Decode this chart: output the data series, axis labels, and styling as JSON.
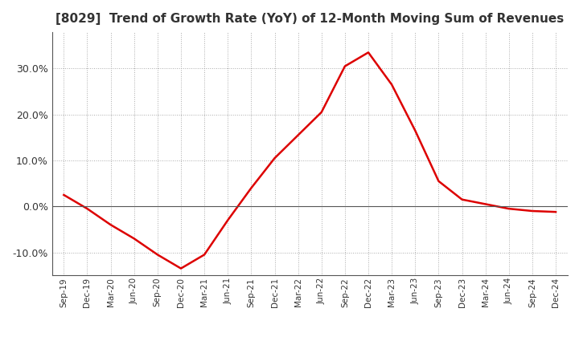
{
  "title": "[8029]  Trend of Growth Rate (YoY) of 12-Month Moving Sum of Revenues",
  "title_fontsize": 11,
  "line_color": "#dd0000",
  "line_width": 1.8,
  "background_color": "#ffffff",
  "plot_bg_color": "#ffffff",
  "grid_color": "#aaaaaa",
  "ylim": [
    -0.15,
    0.38
  ],
  "yticks": [
    -0.1,
    0.0,
    0.1,
    0.2,
    0.3
  ],
  "x_labels": [
    "Sep-19",
    "Dec-19",
    "Mar-20",
    "Jun-20",
    "Sep-20",
    "Dec-20",
    "Mar-21",
    "Jun-21",
    "Sep-21",
    "Dec-21",
    "Mar-22",
    "Jun-22",
    "Sep-22",
    "Dec-22",
    "Mar-23",
    "Jun-23",
    "Sep-23",
    "Dec-23",
    "Mar-24",
    "Jun-24",
    "Sep-24",
    "Dec-24"
  ],
  "y_values": [
    0.025,
    -0.005,
    -0.04,
    -0.07,
    -0.105,
    -0.135,
    -0.105,
    -0.03,
    0.04,
    0.105,
    0.155,
    0.205,
    0.305,
    0.335,
    0.265,
    0.165,
    0.055,
    0.015,
    0.005,
    -0.005,
    -0.01,
    -0.012
  ]
}
